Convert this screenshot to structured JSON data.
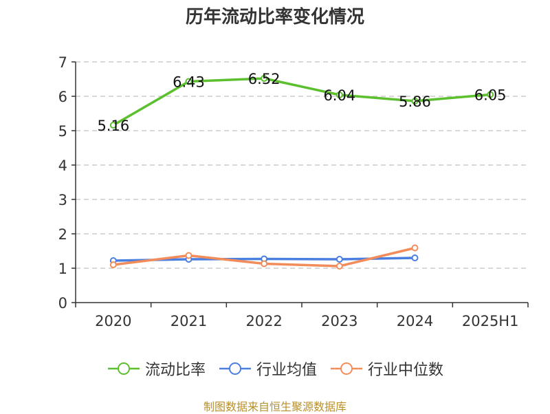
{
  "chart_data": {
    "type": "line",
    "title": "历年流动比率变化情况",
    "categories": [
      "2020",
      "2021",
      "2022",
      "2023",
      "2024",
      "2025H1"
    ],
    "ylim": [
      0,
      7
    ],
    "yticks": [
      "0",
      "1",
      "2",
      "3",
      "4",
      "5",
      "6",
      "7"
    ],
    "grid": true,
    "legend_position": "bottom",
    "series": [
      {
        "name": "流动比率",
        "color": "#5cc02e",
        "values": [
          5.16,
          6.43,
          6.52,
          6.04,
          5.86,
          6.05
        ],
        "labels": [
          "5.16",
          "6.43",
          "6.52",
          "6.04",
          "5.86",
          "6.05"
        ]
      },
      {
        "name": "行业均值",
        "color": "#4a7fe0",
        "values": [
          1.22,
          1.26,
          1.27,
          1.26,
          1.3,
          null
        ]
      },
      {
        "name": "行业中位数",
        "color": "#f28d5b",
        "values": [
          1.1,
          1.37,
          1.13,
          1.06,
          1.59,
          null
        ]
      }
    ]
  },
  "source_note": "制图数据来自恒生聚源数据库"
}
